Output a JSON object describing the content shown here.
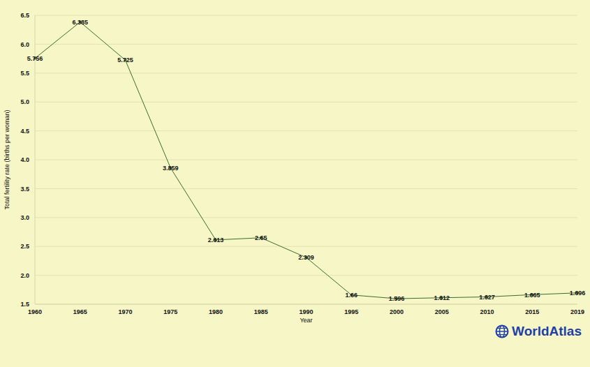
{
  "chart_data": {
    "type": "line",
    "x_label": "Year",
    "y_label": "Total fertility rate (births per woman)",
    "categories": [
      "1960",
      "1965",
      "1970",
      "1975",
      "1980",
      "1985",
      "1990",
      "1995",
      "2000",
      "2005",
      "2010",
      "2015",
      "2019"
    ],
    "values": [
      5.756,
      6.385,
      5.725,
      3.859,
      2.613,
      2.65,
      2.309,
      1.66,
      1.596,
      1.612,
      1.627,
      1.665,
      1.696
    ],
    "color": "#3e6b2f",
    "ylim": [
      1.5,
      6.5
    ],
    "yticks": [
      1.5,
      {
        "value": 2,
        "label": "2.0"
      },
      2.5,
      {
        "value": 3,
        "label": "3.0"
      },
      3.5,
      {
        "value": 4,
        "label": "4.0"
      },
      4.5,
      {
        "value": 5,
        "label": "5.0"
      },
      5.5,
      {
        "value": 6,
        "label": "6.0"
      },
      6.5
    ],
    "grid": true,
    "data_labels": true,
    "annotation": "WorldAtlas"
  }
}
